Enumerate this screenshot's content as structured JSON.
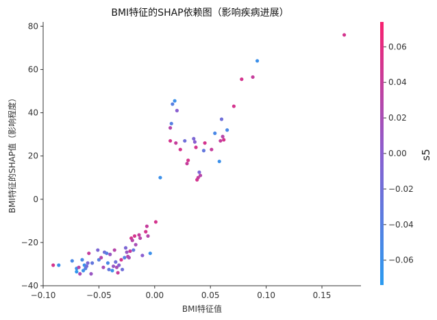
{
  "chart_data": {
    "type": "scatter",
    "title": "BMI特征的SHAP依赖图（影响疾病进展）",
    "xlabel": "BMI特征值",
    "ylabel": "BMI特征的SHAP值（影响程度）",
    "xlim": [
      -0.1,
      0.185
    ],
    "ylim": [
      -40,
      82
    ],
    "xticks": [
      -0.1,
      -0.05,
      0.0,
      0.05,
      0.1,
      0.15
    ],
    "xtick_labels": [
      "−0.10",
      "−0.05",
      "0.00",
      "0.05",
      "0.10",
      "0.15"
    ],
    "yticks": [
      -40,
      -20,
      0,
      20,
      40,
      60,
      80
    ],
    "ytick_labels": [
      "−40",
      "−20",
      "0",
      "20",
      "40",
      "60",
      "80"
    ],
    "colorbar": {
      "label": "s5",
      "range": [
        -0.074,
        0.074
      ],
      "ticks": [
        -0.06,
        -0.04,
        -0.02,
        0.0,
        0.02,
        0.04,
        0.06
      ],
      "tick_labels": [
        "−0.06",
        "−0.04",
        "−0.02",
        "0.00",
        "0.02",
        "0.04",
        "0.06"
      ],
      "colormap": [
        "#2a9bf0",
        "#8a5fd0",
        "#f7216f"
      ]
    },
    "grid": false,
    "points": [
      {
        "x": -0.091,
        "y": -30.5,
        "c": 0.05
      },
      {
        "x": -0.086,
        "y": -30.5,
        "c": -0.06
      },
      {
        "x": -0.074,
        "y": -28.5,
        "c": -0.05
      },
      {
        "x": -0.07,
        "y": -32.0,
        "c": -0.06
      },
      {
        "x": -0.07,
        "y": -33.5,
        "c": -0.07
      },
      {
        "x": -0.068,
        "y": -31.5,
        "c": 0.03
      },
      {
        "x": -0.067,
        "y": -34.5,
        "c": 0.02
      },
      {
        "x": -0.065,
        "y": -28.0,
        "c": -0.05
      },
      {
        "x": -0.064,
        "y": -33.0,
        "c": -0.06
      },
      {
        "x": -0.062,
        "y": -32.0,
        "c": -0.04
      },
      {
        "x": -0.063,
        "y": -30.5,
        "c": -0.06
      },
      {
        "x": -0.061,
        "y": -31.0,
        "c": -0.02
      },
      {
        "x": -0.06,
        "y": -29.5,
        "c": -0.01
      },
      {
        "x": -0.059,
        "y": -25.0,
        "c": 0.04
      },
      {
        "x": -0.057,
        "y": -34.5,
        "c": 0.01
      },
      {
        "x": -0.056,
        "y": -29.5,
        "c": -0.03
      },
      {
        "x": -0.051,
        "y": -23.5,
        "c": -0.01
      },
      {
        "x": -0.05,
        "y": -28.0,
        "c": -0.04
      },
      {
        "x": -0.048,
        "y": -27.0,
        "c": 0.03
      },
      {
        "x": -0.046,
        "y": -31.5,
        "c": 0.02
      },
      {
        "x": -0.045,
        "y": -24.5,
        "c": -0.02
      },
      {
        "x": -0.043,
        "y": -25.0,
        "c": -0.04
      },
      {
        "x": -0.042,
        "y": -29.5,
        "c": -0.05
      },
      {
        "x": -0.041,
        "y": -32.5,
        "c": -0.03
      },
      {
        "x": -0.04,
        "y": -25.5,
        "c": 0.01
      },
      {
        "x": -0.038,
        "y": -33.0,
        "c": -0.06
      },
      {
        "x": -0.037,
        "y": -31.0,
        "c": 0.01
      },
      {
        "x": -0.036,
        "y": -23.5,
        "c": 0.03
      },
      {
        "x": -0.035,
        "y": -29.0,
        "c": -0.02
      },
      {
        "x": -0.034,
        "y": -31.5,
        "c": 0.02
      },
      {
        "x": -0.033,
        "y": -34.0,
        "c": 0.04
      },
      {
        "x": -0.032,
        "y": -30.5,
        "c": 0.0
      },
      {
        "x": -0.03,
        "y": -28.0,
        "c": 0.05
      },
      {
        "x": -0.029,
        "y": -32.5,
        "c": -0.02
      },
      {
        "x": -0.027,
        "y": -27.0,
        "c": -0.04
      },
      {
        "x": -0.026,
        "y": -22.5,
        "c": -0.01
      },
      {
        "x": -0.025,
        "y": -24.5,
        "c": 0.01
      },
      {
        "x": -0.024,
        "y": -26.5,
        "c": 0.03
      },
      {
        "x": -0.023,
        "y": -27.0,
        "c": 0.02
      },
      {
        "x": -0.022,
        "y": -24.0,
        "c": 0.04
      },
      {
        "x": -0.021,
        "y": -18.0,
        "c": 0.05
      },
      {
        "x": -0.02,
        "y": -19.0,
        "c": 0.03
      },
      {
        "x": -0.019,
        "y": -23.5,
        "c": -0.03
      },
      {
        "x": -0.018,
        "y": -17.0,
        "c": 0.05
      },
      {
        "x": -0.017,
        "y": -21.0,
        "c": 0.02
      },
      {
        "x": -0.014,
        "y": -16.5,
        "c": 0.04
      },
      {
        "x": -0.013,
        "y": -18.0,
        "c": 0.03
      },
      {
        "x": -0.011,
        "y": -26.0,
        "c": 0.0
      },
      {
        "x": -0.008,
        "y": -15.0,
        "c": 0.05
      },
      {
        "x": -0.007,
        "y": -12.5,
        "c": 0.04
      },
      {
        "x": -0.006,
        "y": -17.0,
        "c": 0.03
      },
      {
        "x": -0.004,
        "y": -25.0,
        "c": -0.06
      },
      {
        "x": 0.001,
        "y": -10.5,
        "c": 0.05
      },
      {
        "x": 0.005,
        "y": 10.0,
        "c": -0.06
      },
      {
        "x": 0.014,
        "y": 27.0,
        "c": 0.05
      },
      {
        "x": 0.014,
        "y": 33.0,
        "c": 0.03
      },
      {
        "x": 0.015,
        "y": 35.0,
        "c": -0.04
      },
      {
        "x": 0.016,
        "y": 44.0,
        "c": -0.04
      },
      {
        "x": 0.018,
        "y": 45.5,
        "c": -0.06
      },
      {
        "x": 0.019,
        "y": 26.0,
        "c": 0.04
      },
      {
        "x": 0.02,
        "y": 41.0,
        "c": 0.0
      },
      {
        "x": 0.023,
        "y": 23.0,
        "c": 0.05
      },
      {
        "x": 0.027,
        "y": 27.0,
        "c": -0.02
      },
      {
        "x": 0.029,
        "y": 16.5,
        "c": 0.04
      },
      {
        "x": 0.03,
        "y": 18.0,
        "c": 0.05
      },
      {
        "x": 0.035,
        "y": 28.0,
        "c": -0.01
      },
      {
        "x": 0.036,
        "y": 26.5,
        "c": 0.0
      },
      {
        "x": 0.037,
        "y": 24.0,
        "c": 0.05
      },
      {
        "x": 0.038,
        "y": 9.0,
        "c": 0.05
      },
      {
        "x": 0.039,
        "y": 10.0,
        "c": 0.04
      },
      {
        "x": 0.04,
        "y": 12.5,
        "c": -0.01
      },
      {
        "x": 0.041,
        "y": 11.0,
        "c": 0.03
      },
      {
        "x": 0.044,
        "y": 22.5,
        "c": -0.03
      },
      {
        "x": 0.045,
        "y": 26.0,
        "c": 0.05
      },
      {
        "x": 0.051,
        "y": 23.0,
        "c": 0.04
      },
      {
        "x": 0.054,
        "y": 30.5,
        "c": -0.05
      },
      {
        "x": 0.058,
        "y": 17.5,
        "c": -0.06
      },
      {
        "x": 0.059,
        "y": 27.0,
        "c": 0.04
      },
      {
        "x": 0.06,
        "y": 37.0,
        "c": -0.02
      },
      {
        "x": 0.061,
        "y": 29.0,
        "c": 0.03
      },
      {
        "x": 0.062,
        "y": 27.5,
        "c": 0.05
      },
      {
        "x": 0.065,
        "y": 32.0,
        "c": -0.05
      },
      {
        "x": 0.071,
        "y": 43.0,
        "c": 0.05
      },
      {
        "x": 0.078,
        "y": 55.5,
        "c": 0.05
      },
      {
        "x": 0.088,
        "y": 56.5,
        "c": 0.04
      },
      {
        "x": 0.092,
        "y": 64.0,
        "c": -0.06
      },
      {
        "x": 0.17,
        "y": 76.0,
        "c": 0.05
      }
    ]
  }
}
